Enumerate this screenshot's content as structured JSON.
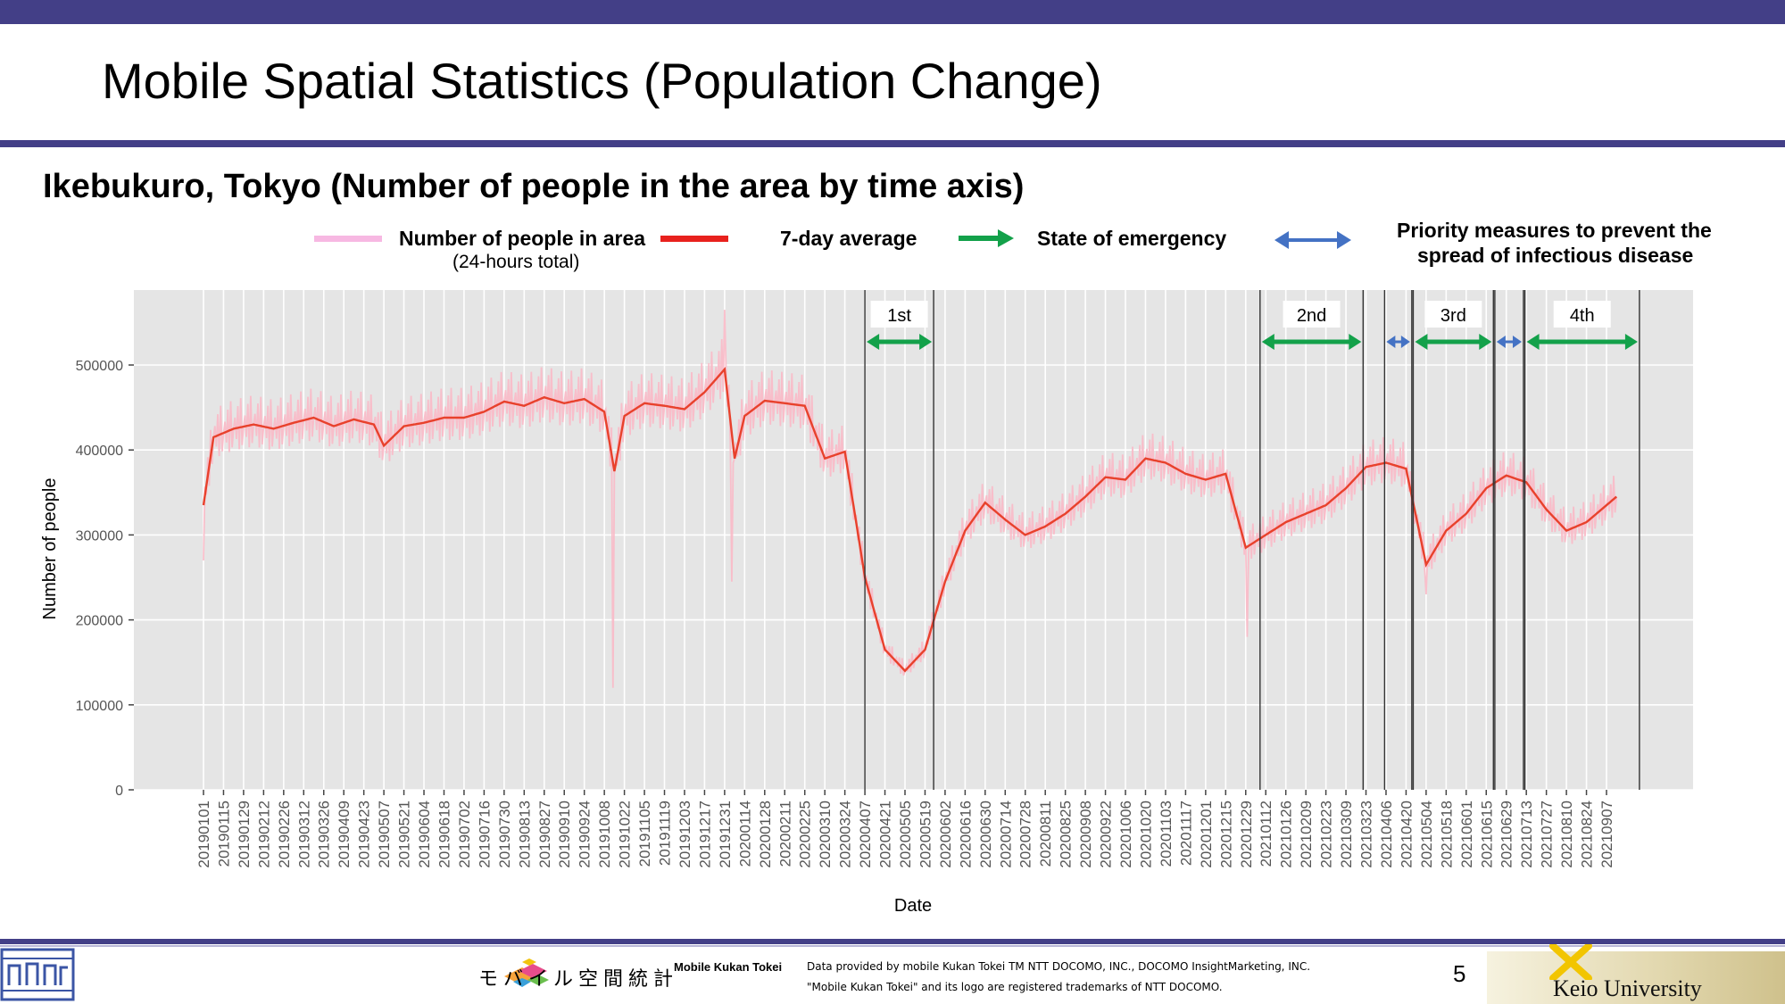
{
  "slide": {
    "title": "Mobile Spatial Statistics (Population Change)",
    "subtitle": "Ikebukuro, Tokyo (Number of people in the area by time axis)",
    "page_number": "5"
  },
  "legend": {
    "daily_label": "Number of people in area",
    "daily_sublabel": "(24-hours total)",
    "avg_label": "7-day average",
    "emergency_label": "State of emergency",
    "priority_label_line1": "Priority measures to prevent the",
    "priority_label_line2": "spread of infectious disease"
  },
  "footer": {
    "logo_text": "モバイル空間統計",
    "product_name": "Mobile Kukan Tokei",
    "credit_line1": "Data provided by mobile Kukan Tokei TM NTT DOCOMO, INC., DOCOMO InsightMarketing, INC.",
    "credit_line2": "\"Mobile Kukan Tokei\" and its logo are registered trademarks of NTT DOCOMO.",
    "university": "Keio University"
  },
  "colors": {
    "header_bar": "#433f87",
    "plot_bg": "#e5e5e5",
    "daily": "#f9b9c7",
    "average": "#e8412c",
    "emergency_arrow": "#13a14a",
    "priority_arrow": "#4472c4"
  },
  "chart_data": {
    "type": "line",
    "xlabel": "Date",
    "ylabel": "Number of people",
    "ylim": [
      0,
      540000
    ],
    "yticks": [
      0,
      100000,
      200000,
      300000,
      400000,
      500000
    ],
    "ytick_labels": [
      "0",
      "100000",
      "200000",
      "300000",
      "400000",
      "500000"
    ],
    "grid": true,
    "x_tick_labels": [
      "20190101",
      "20190115",
      "20190129",
      "20190212",
      "20190226",
      "20190312",
      "20190326",
      "20190409",
      "20190423",
      "20190507",
      "20190521",
      "20190604",
      "20190618",
      "20190702",
      "20190716",
      "20190730",
      "20190813",
      "20190827",
      "20190910",
      "20190924",
      "20191008",
      "20191022",
      "20191105",
      "20191119",
      "20191203",
      "20191217",
      "20191231",
      "20200114",
      "20200128",
      "20200211",
      "20200225",
      "20200310",
      "20200324",
      "20200407",
      "20200421",
      "20200505",
      "20200519",
      "20200602",
      "20200616",
      "20200630",
      "20200714",
      "20200728",
      "20200811",
      "20200825",
      "20200908",
      "20200922",
      "20201006",
      "20201020",
      "20201103",
      "20201117",
      "20201201",
      "20201215",
      "20201229",
      "20210112",
      "20210126",
      "20210209",
      "20210223",
      "20210309",
      "20210323",
      "20210406",
      "20210420",
      "20210504",
      "20210518",
      "20210601",
      "20210615",
      "20210629",
      "20210713",
      "20210727",
      "20210810",
      "20210824",
      "20210907"
    ],
    "series": [
      {
        "name": "7-day average",
        "points": [
          [
            "20190101",
            335000
          ],
          [
            "20190108",
            415000
          ],
          [
            "20190122",
            425000
          ],
          [
            "20190205",
            430000
          ],
          [
            "20190219",
            425000
          ],
          [
            "20190305",
            432000
          ],
          [
            "20190319",
            438000
          ],
          [
            "20190402",
            428000
          ],
          [
            "20190416",
            436000
          ],
          [
            "20190430",
            430000
          ],
          [
            "20190507",
            405000
          ],
          [
            "20190521",
            428000
          ],
          [
            "20190604",
            432000
          ],
          [
            "20190618",
            438000
          ],
          [
            "20190702",
            438000
          ],
          [
            "20190716",
            445000
          ],
          [
            "20190730",
            457000
          ],
          [
            "20190813",
            452000
          ],
          [
            "20190827",
            462000
          ],
          [
            "20190910",
            455000
          ],
          [
            "20190924",
            460000
          ],
          [
            "20191008",
            445000
          ],
          [
            "20191015",
            375000
          ],
          [
            "20191022",
            440000
          ],
          [
            "20191105",
            455000
          ],
          [
            "20191119",
            452000
          ],
          [
            "20191203",
            448000
          ],
          [
            "20191217",
            468000
          ],
          [
            "20191231",
            495000
          ],
          [
            "20200107",
            390000
          ],
          [
            "20200114",
            440000
          ],
          [
            "20200128",
            458000
          ],
          [
            "20200211",
            455000
          ],
          [
            "20200225",
            452000
          ],
          [
            "20200310",
            390000
          ],
          [
            "20200324",
            398000
          ],
          [
            "20200407",
            250000
          ],
          [
            "20200421",
            165000
          ],
          [
            "20200505",
            140000
          ],
          [
            "20200519",
            165000
          ],
          [
            "20200602",
            245000
          ],
          [
            "20200616",
            305000
          ],
          [
            "20200630",
            338000
          ],
          [
            "20200714",
            318000
          ],
          [
            "20200728",
            300000
          ],
          [
            "20200811",
            310000
          ],
          [
            "20200825",
            325000
          ],
          [
            "20200908",
            345000
          ],
          [
            "20200922",
            368000
          ],
          [
            "20201006",
            365000
          ],
          [
            "20201020",
            390000
          ],
          [
            "20201103",
            385000
          ],
          [
            "20201117",
            372000
          ],
          [
            "20201201",
            365000
          ],
          [
            "20201215",
            372000
          ],
          [
            "20201229",
            285000
          ],
          [
            "20210112",
            300000
          ],
          [
            "20210126",
            315000
          ],
          [
            "20210209",
            325000
          ],
          [
            "20210223",
            335000
          ],
          [
            "20210309",
            355000
          ],
          [
            "20210323",
            380000
          ],
          [
            "20210406",
            385000
          ],
          [
            "20210420",
            378000
          ],
          [
            "20210504",
            265000
          ],
          [
            "20210518",
            305000
          ],
          [
            "20210601",
            325000
          ],
          [
            "20210615",
            355000
          ],
          [
            "20210629",
            370000
          ],
          [
            "20210713",
            362000
          ],
          [
            "20210727",
            330000
          ],
          [
            "20210810",
            305000
          ],
          [
            "20210824",
            315000
          ],
          [
            "20210907",
            335000
          ],
          [
            "20210914",
            345000
          ]
        ]
      },
      {
        "name": "Number of people in area",
        "label_note": "(24-hours total)",
        "note": "daily values oscillate roughly ±30000 around the 7-day average with occasional dips",
        "dips": [
          [
            "20190101",
            270000
          ],
          [
            "20191014",
            120000
          ],
          [
            "20191231",
            565000
          ],
          [
            "20200105",
            245000
          ],
          [
            "20201230",
            180000
          ],
          [
            "20210504",
            230000
          ]
        ]
      }
    ],
    "annotations": [
      {
        "label": "1st",
        "kind": "State of emergency",
        "start": "20200407",
        "end": "20200525"
      },
      {
        "label": "2nd",
        "kind": "State of emergency",
        "start": "20210108",
        "end": "20210321"
      },
      {
        "kind": "Priority measures to prevent the spread of infectious disease",
        "start": "20210405",
        "end": "20210424"
      },
      {
        "label": "3rd",
        "kind": "State of emergency",
        "start": "20210425",
        "end": "20210620"
      },
      {
        "kind": "Priority measures to prevent the spread of infectious disease",
        "start": "20210621",
        "end": "20210711"
      },
      {
        "label": "4th",
        "kind": "State of emergency",
        "start": "20210712",
        "end": "20210930"
      }
    ]
  }
}
